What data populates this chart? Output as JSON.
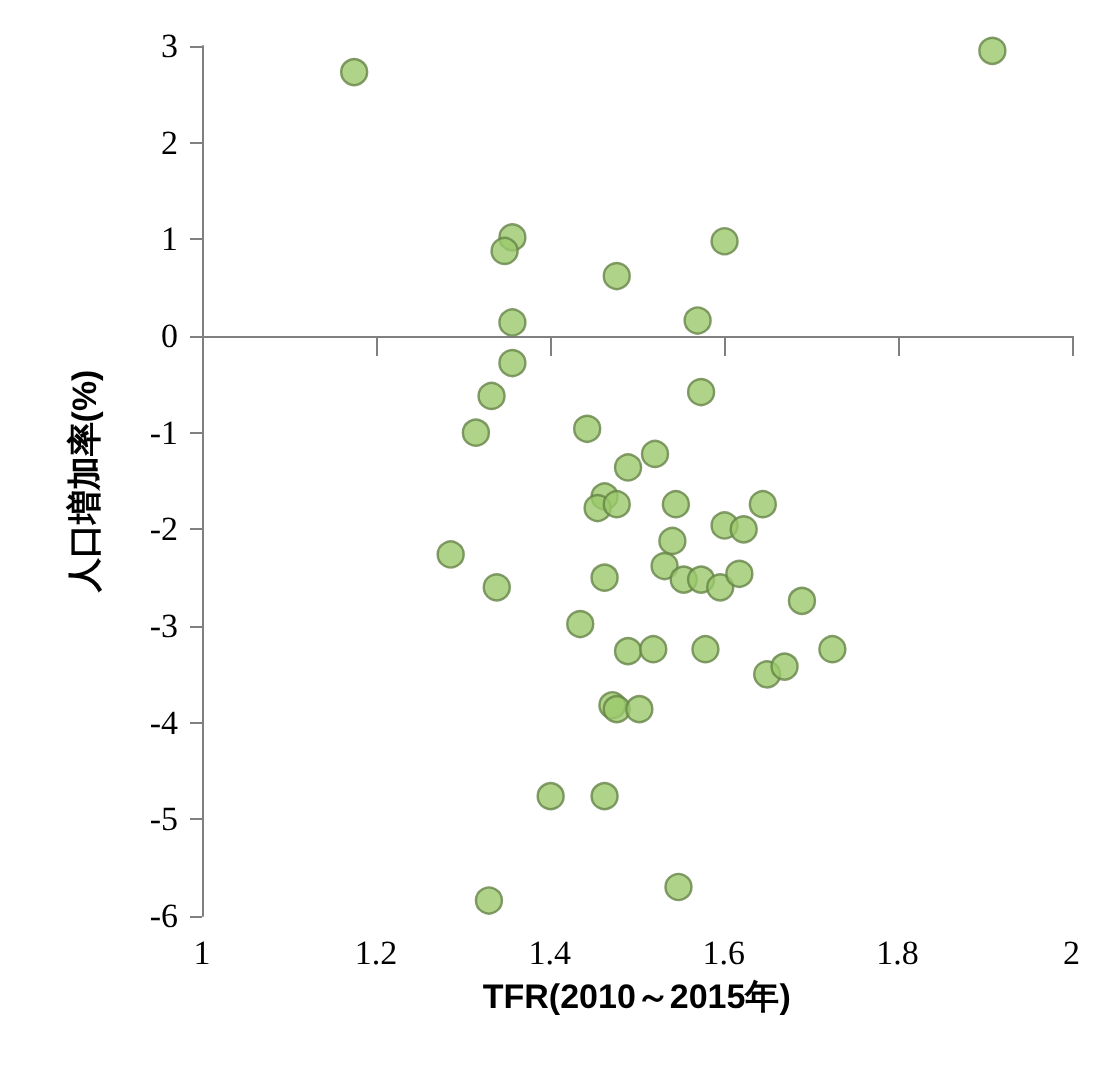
{
  "chart_data": {
    "type": "scatter",
    "xlabel": "TFR(2010～2015年)",
    "ylabel": "人口増加率(%)",
    "xlim": [
      1,
      2
    ],
    "xticks": [
      1,
      1.2,
      1.4,
      1.6,
      1.8,
      2
    ],
    "ylim": [
      -6,
      3
    ],
    "yticks": [
      -6,
      -5,
      -4,
      -3,
      -2,
      -1,
      0,
      1,
      2,
      3
    ],
    "marker": "circle",
    "series": [
      {
        "color": "#9bc96b",
        "x": [
          1.175,
          1.909,
          1.357,
          1.348,
          1.477,
          1.601,
          1.357,
          1.57,
          1.357,
          1.333,
          1.574,
          1.315,
          1.443,
          1.521,
          1.49,
          1.463,
          1.455,
          1.477,
          1.545,
          1.645,
          1.601,
          1.623,
          1.286,
          1.541,
          1.532,
          1.463,
          1.554,
          1.574,
          1.596,
          1.618,
          1.339,
          1.69,
          1.435,
          1.49,
          1.519,
          1.579,
          1.725,
          1.65,
          1.67,
          1.472,
          1.477,
          1.503,
          1.401,
          1.463,
          1.33,
          1.548
        ],
        "values": [
          2.73,
          2.95,
          1.02,
          0.88,
          0.62,
          0.98,
          0.14,
          0.16,
          -0.28,
          -0.62,
          -0.58,
          -1.0,
          -0.96,
          -1.22,
          -1.36,
          -1.66,
          -1.78,
          -1.74,
          -1.74,
          -1.74,
          -1.96,
          -2.0,
          -2.26,
          -2.12,
          -2.38,
          -2.5,
          -2.52,
          -2.52,
          -2.6,
          -2.46,
          -2.6,
          -2.74,
          -2.98,
          -3.26,
          -3.24,
          -3.24,
          -3.24,
          -3.5,
          -3.42,
          -3.82,
          -3.86,
          -3.86,
          -4.76,
          -4.76,
          -5.84,
          -5.7
        ]
      }
    ]
  }
}
